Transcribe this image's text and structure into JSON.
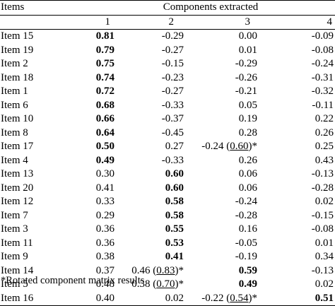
{
  "header": {
    "items_label": "Items",
    "components_label": "Components extracted",
    "component_numbers": [
      "1",
      "2",
      "3",
      "4"
    ]
  },
  "rows": [
    {
      "item": "Item 15",
      "c1": "0.81",
      "c2": "-0.29",
      "c3": "0.00",
      "c4": "-0.09",
      "bold": 1
    },
    {
      "item": "Item 19",
      "c1": "0.79",
      "c2": "-0.27",
      "c3": "0.01",
      "c4": "-0.08",
      "bold": 1
    },
    {
      "item": "Item 2",
      "c1": "0.75",
      "c2": "-0.15",
      "c3": "-0.29",
      "c4": "-0.24",
      "bold": 1
    },
    {
      "item": "Item 18",
      "c1": "0.74",
      "c2": "-0.23",
      "c3": "-0.26",
      "c4": "-0.31",
      "bold": 1
    },
    {
      "item": "Item 1",
      "c1": "0.72",
      "c2": "-0.27",
      "c3": "-0.21",
      "c4": "-0.32",
      "bold": 1
    },
    {
      "item": "Item 6",
      "c1": "0.68",
      "c2": "-0.33",
      "c3": "0.05",
      "c4": "-0.11",
      "bold": 1
    },
    {
      "item": "Item 10",
      "c1": "0.66",
      "c2": "-0.37",
      "c3": "0.19",
      "c4": "0.22",
      "bold": 1
    },
    {
      "item": "Item 8",
      "c1": "0.64",
      "c2": "-0.45",
      "c3": "0.28",
      "c4": "0.26",
      "bold": 1
    },
    {
      "item": "Item 17",
      "c1": "0.50",
      "c2": "0.27",
      "c3": "-0.24",
      "c3_rot": "0.60",
      "c4": "0.25",
      "bold": 1
    },
    {
      "item": "Item 4",
      "c1": "0.49",
      "c2": "-0.33",
      "c3": "0.26",
      "c4": "0.43",
      "bold": 1
    },
    {
      "item": "Item 13",
      "c1": "0.30",
      "c2": "0.60",
      "c3": "0.06",
      "c4": "-0.13",
      "bold": 2
    },
    {
      "item": "Item 20",
      "c1": "0.41",
      "c2": "0.60",
      "c3": "0.06",
      "c4": "-0.28",
      "bold": 2
    },
    {
      "item": "Item 12",
      "c1": "0.33",
      "c2": "0.58",
      "c3": "-0.24",
      "c4": "0.02",
      "bold": 2
    },
    {
      "item": "Item 7",
      "c1": "0.29",
      "c2": "0.58",
      "c3": "-0.28",
      "c4": "-0.15",
      "bold": 2
    },
    {
      "item": "Item 3",
      "c1": "0.36",
      "c2": "0.55",
      "c3": "0.16",
      "c4": "-0.08",
      "bold": 2
    },
    {
      "item": "Item 11",
      "c1": "0.36",
      "c2": "0.53",
      "c3": "-0.05",
      "c4": "0.01",
      "bold": 2
    },
    {
      "item": "Item 9",
      "c1": "0.38",
      "c2": "0.41",
      "c3": "-0.19",
      "c4": "0.34",
      "bold": 2
    },
    {
      "item": "Item 14",
      "c1": "0.37",
      "c2": "0.46",
      "c2_rot": "0.83",
      "c3": "0.59",
      "c4": "-0.13",
      "bold": 3
    },
    {
      "item": "Item 5",
      "c1": "0.48",
      "c2": "0.38",
      "c2_rot": "0.70",
      "c3": "0.49",
      "c4": "0.02",
      "bold": 3
    },
    {
      "item": "Item 16",
      "c1": "0.40",
      "c2": "0.02",
      "c3": "-0.22",
      "c3_rot": "0.54",
      "c4": "0.51",
      "bold": 4
    }
  ],
  "footnote": "*Rotated component matrix results"
}
